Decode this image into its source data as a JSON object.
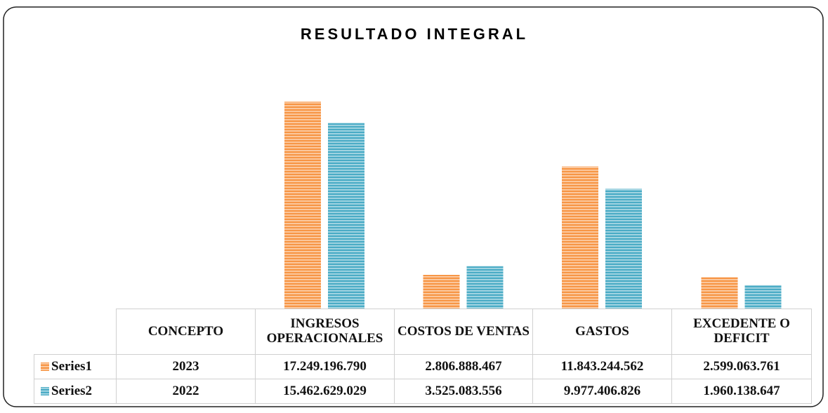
{
  "chart_data": {
    "type": "bar",
    "title": "RESULTADO INTEGRAL",
    "categories": [
      "CONCEPTO",
      "INGRESOS OPERACIONALES",
      "COSTOS DE VENTAS",
      "GASTOS",
      "EXCEDENTE O DEFICIT"
    ],
    "series": [
      {
        "name": "Series1",
        "color": "#f79646",
        "values": [
          2023,
          17249196790,
          2806888467,
          11843244562,
          2599063761
        ],
        "value_labels": [
          "2023",
          "17.249.196.790",
          "2.806.888.467",
          "11.843.244.562",
          "2.599.063.761"
        ]
      },
      {
        "name": "Series2",
        "color": "#4bacc6",
        "values": [
          2022,
          15462629029,
          3525083556,
          9977406826,
          1960138647
        ],
        "value_labels": [
          "2022",
          "15.462.629.029",
          "3.525.083.556",
          "9.977.406.826",
          "1.960.138.647"
        ]
      }
    ],
    "ylim": [
      0,
      20000000000
    ]
  }
}
